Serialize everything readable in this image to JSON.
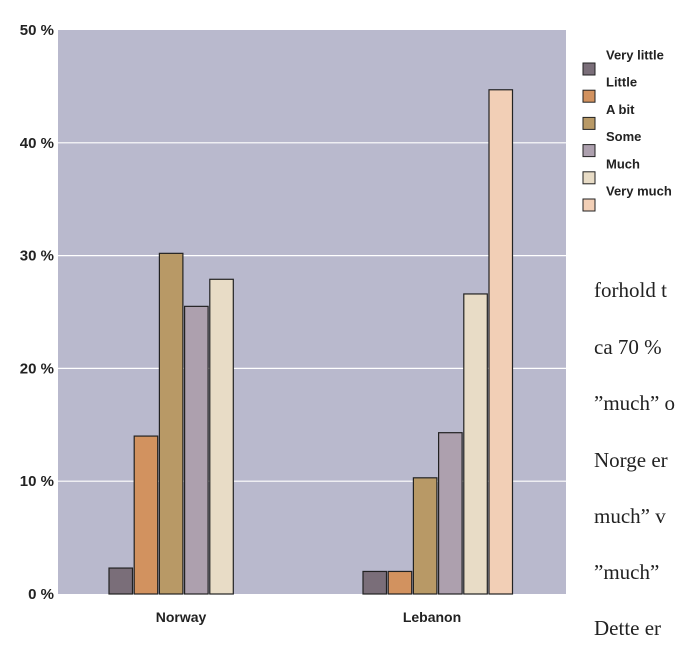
{
  "chart_data": {
    "type": "bar",
    "categories": [
      "Norway",
      "Lebanon"
    ],
    "series": [
      {
        "name": "Very little",
        "color": "#7a6e79",
        "values": [
          2.3,
          2.0
        ]
      },
      {
        "name": "Little",
        "color": "#d2925f",
        "values": [
          14.0,
          2.0
        ]
      },
      {
        "name": "A bit",
        "color": "#b89966",
        "values": [
          30.2,
          10.3
        ]
      },
      {
        "name": "Some",
        "color": "#ada0ae",
        "values": [
          25.5,
          14.3
        ]
      },
      {
        "name": "Much",
        "color": "#e8dcc6",
        "values": [
          27.9,
          26.6
        ]
      },
      {
        "name": "Very much",
        "color": "#f2cfb6",
        "values": [
          0,
          44.7
        ]
      }
    ],
    "yticks": [
      "0 %",
      "10 %",
      "20 %",
      "30 %",
      "40 %",
      "50 %"
    ],
    "ylim": [
      0,
      50
    ],
    "grid": true,
    "plot_background": "#b9b9cd",
    "legend_position": "right"
  },
  "side_text": [
    "forhold t",
    "ca 70 %",
    "”much” o",
    "Norge er",
    "much” v",
    "”much”",
    "Dette er"
  ]
}
